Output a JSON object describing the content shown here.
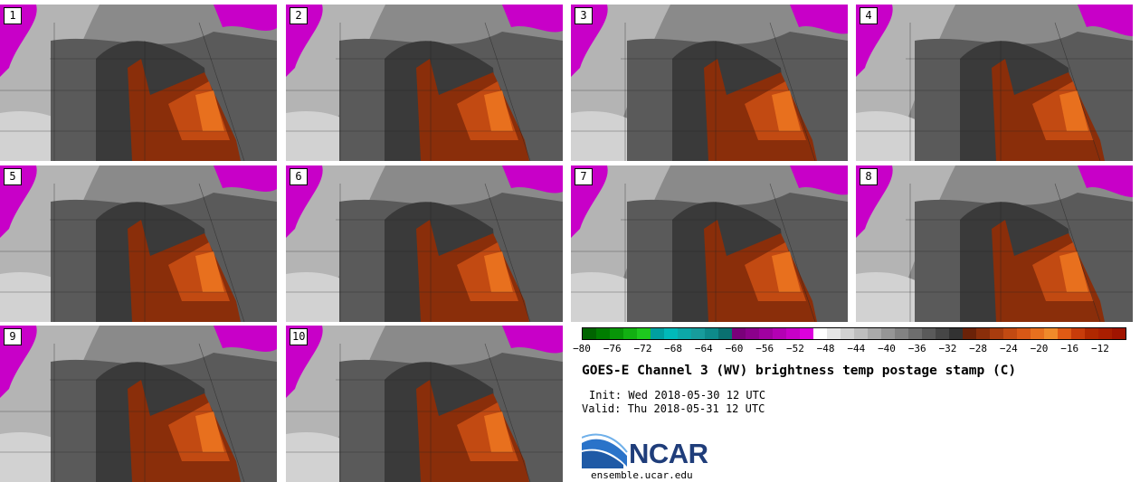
{
  "panels": [
    {
      "label": "1"
    },
    {
      "label": "2"
    },
    {
      "label": "3"
    },
    {
      "label": "4"
    },
    {
      "label": "5"
    },
    {
      "label": "6"
    },
    {
      "label": "7"
    },
    {
      "label": "8"
    },
    {
      "label": "9"
    },
    {
      "label": "10"
    }
  ],
  "colorbar": {
    "colors": [
      "#006400",
      "#007d00",
      "#089608",
      "#12b012",
      "#1ec81e",
      "#00a0a0",
      "#00b9b9",
      "#0ca8a8",
      "#179c9c",
      "#0d8a8a",
      "#0a7070",
      "#7a007a",
      "#8c008c",
      "#a000a0",
      "#b400b4",
      "#c800c8",
      "#dc00dc",
      "#ffffff",
      "#e6e6e6",
      "#d2d2d2",
      "#bebebe",
      "#aaaaaa",
      "#969696",
      "#828282",
      "#6e6e6e",
      "#5a5a5a",
      "#464646",
      "#323232",
      "#6b2208",
      "#8a2e0a",
      "#a83c0e",
      "#c24a12",
      "#d85816",
      "#e8701e",
      "#f08a2a",
      "#e05a14",
      "#c83c0a",
      "#b02800",
      "#aa1e00",
      "#a01400"
    ],
    "tick_labels": [
      "−80",
      "−76",
      "−72",
      "−68",
      "−64",
      "−60",
      "−56",
      "−52",
      "−48",
      "−44",
      "−40",
      "−36",
      "−32",
      "−28",
      "−24",
      "−20",
      "−16",
      "−12"
    ]
  },
  "title": "GOES-E Channel 3 (WV) brightness temp postage stamp (C)",
  "init": "Init: Wed 2018-05-30 12 UTC",
  "valid": "Valid: Thu 2018-05-31 12 UTC",
  "logo": {
    "text": "NCAR"
  },
  "website": "ensemble.ucar.edu"
}
